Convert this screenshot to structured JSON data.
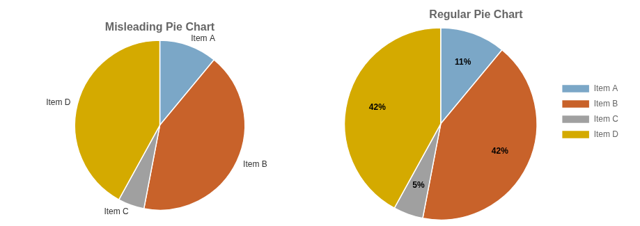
{
  "chart_data": [
    {
      "type": "pie",
      "title": "Misleading Pie Chart",
      "categories": [
        "Item A",
        "Item B",
        "Item C",
        "Item D"
      ],
      "values": [
        11,
        42,
        5,
        42
      ],
      "colors": [
        "#7BA7C7",
        "#C8622A",
        "#A0A0A0",
        "#D4AA00"
      ]
    },
    {
      "type": "pie",
      "title": "Regular Pie Chart",
      "categories": [
        "Item A",
        "Item B",
        "Item C",
        "Item D"
      ],
      "values": [
        11,
        42,
        5,
        42
      ],
      "value_labels": [
        "11%",
        "42%",
        "5%",
        "42%"
      ],
      "data_labels": true,
      "colors": [
        "#7BA7C7",
        "#C8622A",
        "#A0A0A0",
        "#D4AA00"
      ],
      "legend": "right"
    }
  ]
}
